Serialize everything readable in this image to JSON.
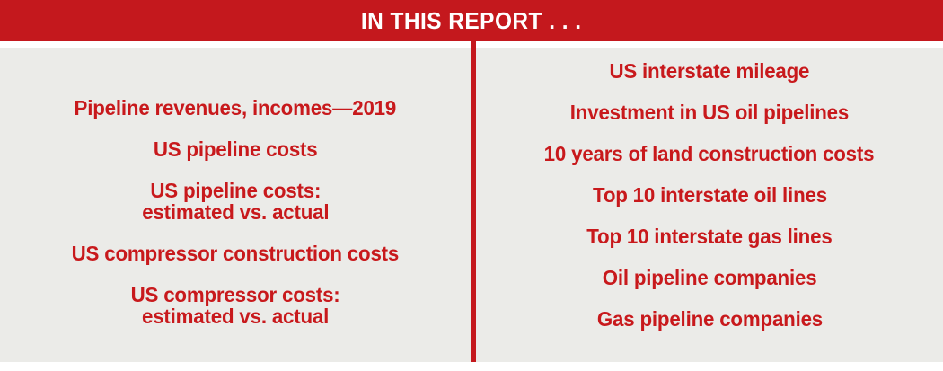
{
  "header": {
    "title": "IN THIS REPORT . . ."
  },
  "colors": {
    "accent_red": "#C4181D",
    "text_red": "#C8191C",
    "panel_gray": "#EBEBE8",
    "background_white": "#FFFFFF"
  },
  "left_column": {
    "items": [
      {
        "lines": [
          "Pipeline revenues, incomes—2019"
        ]
      },
      {
        "lines": [
          "US pipeline costs"
        ]
      },
      {
        "lines": [
          "US pipeline costs:",
          "estimated vs. actual"
        ]
      },
      {
        "lines": [
          "US compressor construction costs"
        ]
      },
      {
        "lines": [
          "US compressor costs:",
          "estimated vs. actual"
        ]
      }
    ]
  },
  "right_column": {
    "items": [
      {
        "lines": [
          "US interstate mileage"
        ]
      },
      {
        "lines": [
          "Investment in US oil pipelines"
        ]
      },
      {
        "lines": [
          "10 years of land construction costs"
        ]
      },
      {
        "lines": [
          "Top 10 interstate oil lines"
        ]
      },
      {
        "lines": [
          "Top 10 interstate gas lines"
        ]
      },
      {
        "lines": [
          "Oil pipeline companies"
        ]
      },
      {
        "lines": [
          "Gas pipeline companies"
        ]
      }
    ]
  }
}
